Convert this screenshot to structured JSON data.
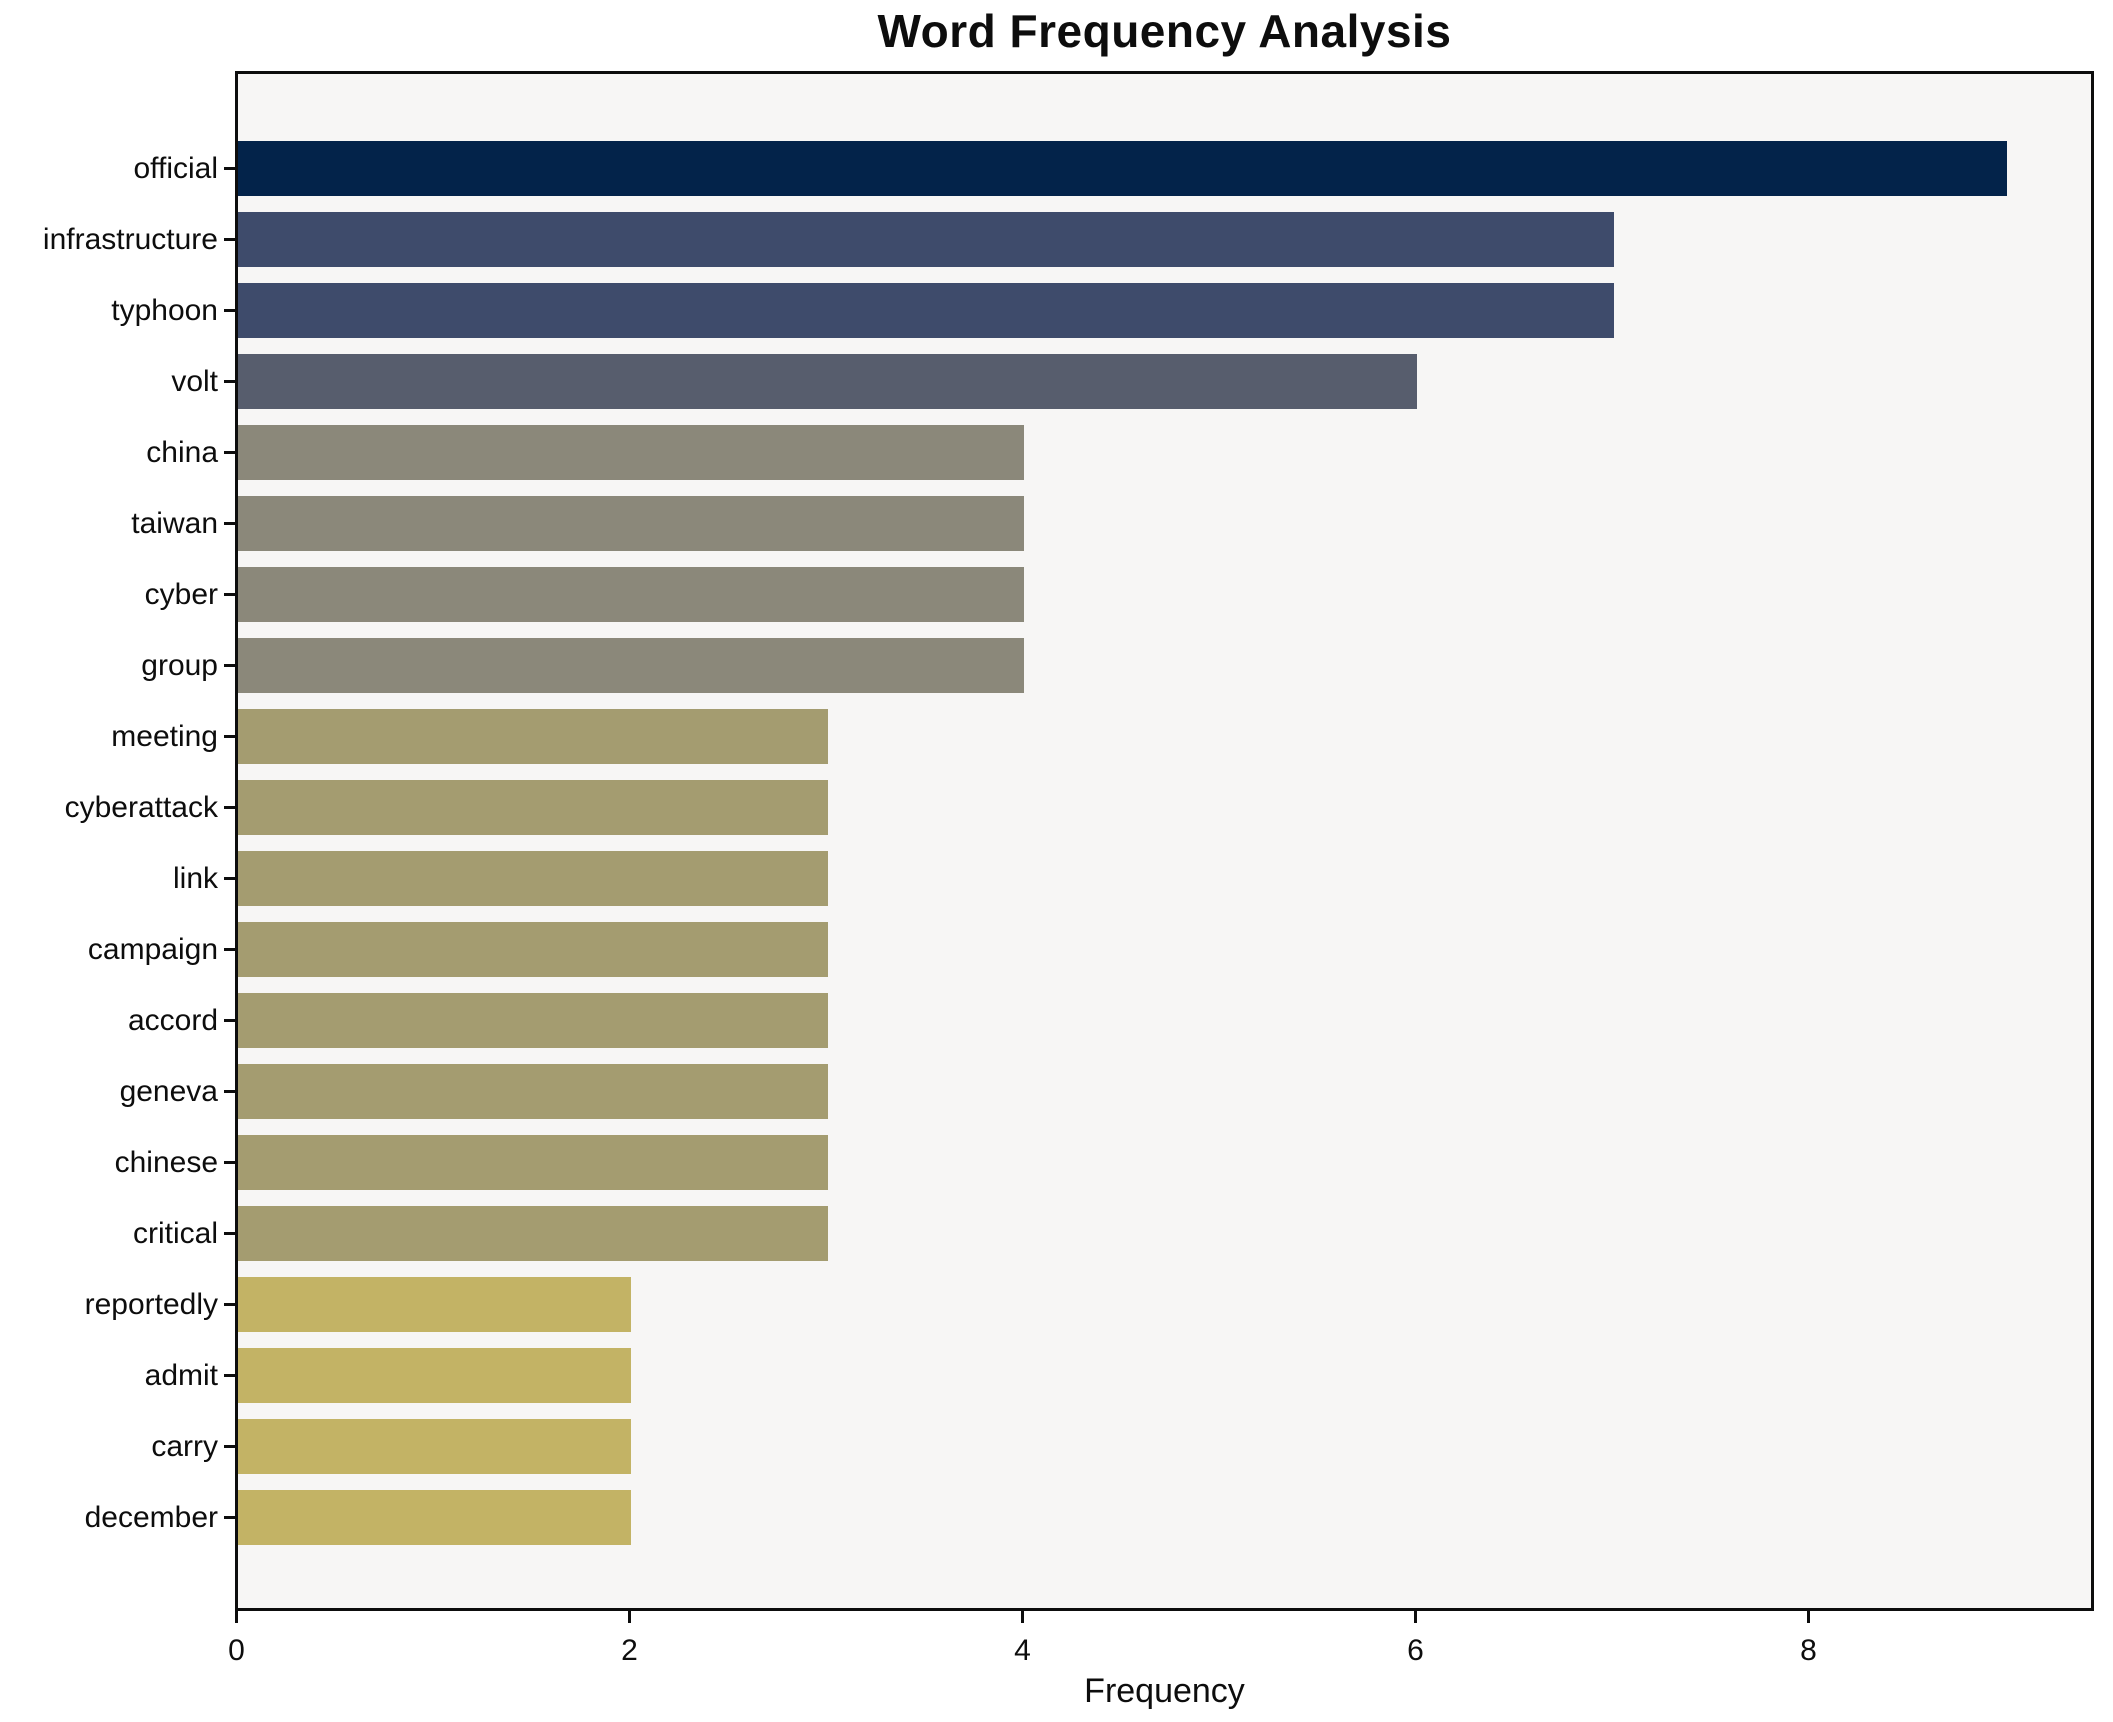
{
  "chart_data": {
    "type": "bar",
    "orientation": "horizontal",
    "title": "Word Frequency Analysis",
    "xlabel": "Frequency",
    "ylabel": "",
    "categories": [
      "official",
      "infrastructure",
      "typhoon",
      "volt",
      "china",
      "taiwan",
      "cyber",
      "group",
      "meeting",
      "cyberattack",
      "link",
      "campaign",
      "accord",
      "geneva",
      "chinese",
      "critical",
      "reportedly",
      "admit",
      "carry",
      "december"
    ],
    "values": [
      9,
      7,
      7,
      6,
      4,
      4,
      4,
      4,
      3,
      3,
      3,
      3,
      3,
      3,
      3,
      3,
      2,
      2,
      2,
      2
    ],
    "bar_colors": [
      "#03234a",
      "#3e4b6b",
      "#3e4b6b",
      "#575d6d",
      "#8b887a",
      "#8b887a",
      "#8b887a",
      "#8b887a",
      "#a49c70",
      "#a49c70",
      "#a49c70",
      "#a49c70",
      "#a49c70",
      "#a49c70",
      "#a49c70",
      "#a49c70",
      "#c3b365",
      "#c3b365",
      "#c3b365",
      "#c3b365"
    ],
    "x_ticks": [
      0,
      2,
      4,
      6,
      8
    ],
    "x_tick_labels": [
      "0",
      "2",
      "4",
      "6",
      "8"
    ],
    "xlim": [
      0,
      9.45
    ],
    "grid": false,
    "legend": null,
    "plot_bg": "#f7f6f5",
    "fig_bg": "#ffffff",
    "spine_color": "#0d0d0d",
    "text_color": "#0d0d0d"
  }
}
